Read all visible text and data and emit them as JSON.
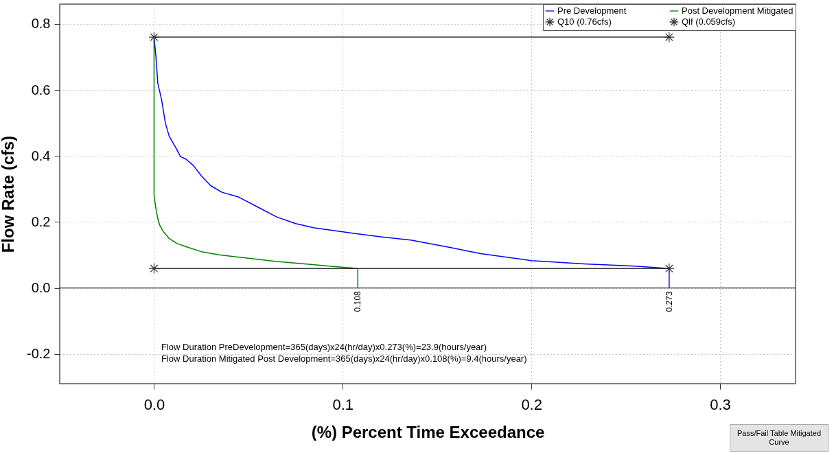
{
  "chart_data": {
    "type": "line",
    "xlabel": "(%) Percent Time Exceedance",
    "ylabel": "Flow Rate (cfs)",
    "xlim": [
      -0.05,
      0.34
    ],
    "ylim": [
      -0.29,
      0.86
    ],
    "xticks": [
      {
        "value": 0,
        "label": "0.0"
      },
      0.1,
      0.2,
      0.3
    ],
    "yticks": [
      -0.2,
      {
        "value": 0,
        "label": "0.0"
      },
      0.2,
      0.4,
      0.6,
      0.8
    ],
    "grid": true,
    "legend": "top right",
    "series": [
      {
        "name": "Pre Development",
        "color": "#0000ff",
        "marker": "none",
        "x": [
          0,
          0.001,
          0.002,
          0.004,
          0.006,
          0.008,
          0.012,
          0.014,
          0.017,
          0.021,
          0.025,
          0.03,
          0.036,
          0.045,
          0.055,
          0.065,
          0.075,
          0.085,
          0.1,
          0.12,
          0.136,
          0.155,
          0.173,
          0.2,
          0.228,
          0.255,
          0.273,
          0.273
        ],
        "values": [
          0.76,
          0.7,
          0.62,
          0.57,
          0.5,
          0.46,
          0.42,
          0.398,
          0.39,
          0.37,
          0.34,
          0.31,
          0.29,
          0.275,
          0.245,
          0.215,
          0.195,
          0.182,
          0.17,
          0.155,
          0.145,
          0.125,
          0.104,
          0.083,
          0.073,
          0.066,
          0.059,
          0
        ]
      },
      {
        "name": "Post Development Mitigated",
        "color": "#008000",
        "marker": "none",
        "x": [
          0,
          0,
          0.001,
          0.002,
          0.003,
          0.005,
          0.008,
          0.012,
          0.017,
          0.025,
          0.035,
          0.05,
          0.065,
          0.08,
          0.095,
          0.108,
          0.108
        ],
        "values": [
          0.76,
          0.28,
          0.24,
          0.21,
          0.19,
          0.17,
          0.15,
          0.135,
          0.125,
          0.11,
          0.1,
          0.09,
          0.08,
          0.073,
          0.065,
          0.059,
          0
        ]
      },
      {
        "name": "Q10 (0.76cfs)",
        "color": "#333333",
        "marker": "cross",
        "x": [
          0,
          0.273
        ],
        "values": [
          0.76,
          0.76
        ]
      },
      {
        "name": "Qlf (0.059cfs)",
        "color": "#333333",
        "marker": "cross",
        "x": [
          0,
          0.273
        ],
        "values": [
          0.059,
          0.059
        ]
      }
    ],
    "ref_lines": [
      {
        "axis": "y",
        "value": 0,
        "color": "#555555"
      }
    ],
    "annotations": [
      {
        "text": "0.108",
        "x": 0.108,
        "y": -0.01
      },
      {
        "text": "0.273",
        "x": 0.273,
        "y": -0.01
      },
      "Flow Duration PreDevelopment=365(days)x24(hr/day)x0.273(%)=23.9(hours/year)",
      "Flow Duration Mitigated Post Development=365(days)x24(hr/day)x0.108(%)=9.4(hours/year)",
      "Pass/Fail Table Mitigated Curve"
    ]
  }
}
